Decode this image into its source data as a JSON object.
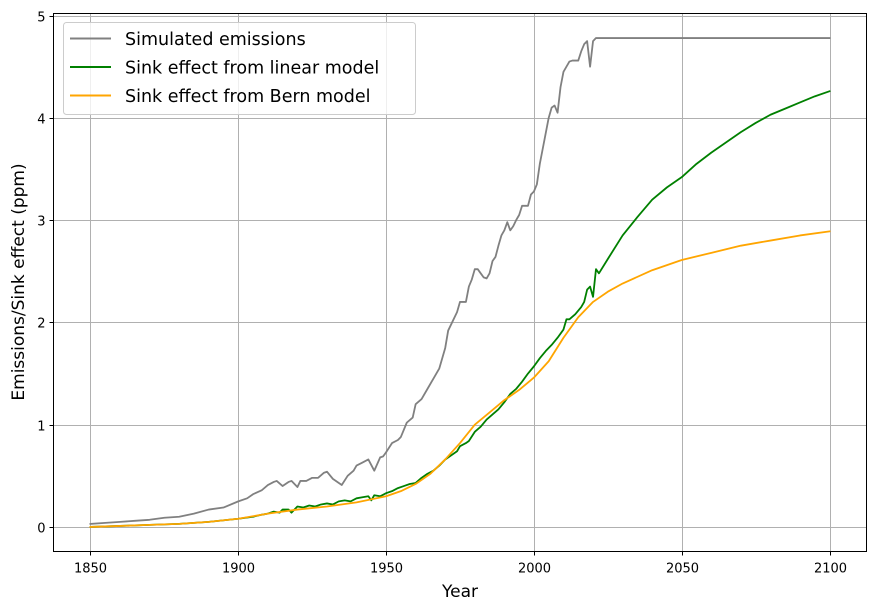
{
  "chart_data": {
    "type": "line",
    "title": "",
    "xlabel": "Year",
    "ylabel": "Emissions/Sink effect (ppm)",
    "xlim": [
      1837.5,
      2112.5
    ],
    "ylim": [
      -0.24,
      5.02
    ],
    "xticks": [
      1850,
      1900,
      1950,
      2000,
      2050,
      2100
    ],
    "yticks": [
      0,
      1,
      2,
      3,
      4,
      5
    ],
    "xtick_labels": [
      "1850",
      "1900",
      "1950",
      "2000",
      "2050",
      "2100"
    ],
    "ytick_labels": [
      "0",
      "1",
      "2",
      "3",
      "4",
      "5"
    ],
    "grid": true,
    "legend_position": "top-left",
    "series": [
      {
        "name": "Simulated emissions",
        "color": "#808080",
        "x": [
          1850,
          1855,
          1860,
          1865,
          1870,
          1875,
          1880,
          1885,
          1890,
          1895,
          1900,
          1903,
          1905,
          1908,
          1910,
          1912,
          1913,
          1915,
          1917,
          1918,
          1920,
          1921,
          1923,
          1925,
          1927,
          1929,
          1930,
          1932,
          1935,
          1937,
          1939,
          1940,
          1942,
          1944,
          1946,
          1948,
          1949,
          1950,
          1952,
          1954,
          1955,
          1957,
          1959,
          1960,
          1962,
          1964,
          1966,
          1968,
          1970,
          1971,
          1972,
          1974,
          1975,
          1976,
          1977,
          1978,
          1979,
          1980,
          1981,
          1982,
          1983,
          1984,
          1985,
          1986,
          1987,
          1988,
          1989,
          1990,
          1991,
          1992,
          1993,
          1994,
          1995,
          1996,
          1997,
          1998,
          1999,
          2000,
          2001,
          2002,
          2003,
          2004,
          2005,
          2006,
          2007,
          2008,
          2009,
          2010,
          2011,
          2012,
          2013,
          2014,
          2015,
          2016,
          2017,
          2018,
          2019,
          2020,
          2021,
          2022,
          2030,
          2050,
          2075,
          2100
        ],
        "y": [
          0.03,
          0.04,
          0.05,
          0.06,
          0.07,
          0.09,
          0.1,
          0.13,
          0.17,
          0.19,
          0.25,
          0.28,
          0.32,
          0.36,
          0.41,
          0.44,
          0.45,
          0.4,
          0.44,
          0.45,
          0.39,
          0.45,
          0.45,
          0.48,
          0.48,
          0.53,
          0.54,
          0.47,
          0.41,
          0.5,
          0.55,
          0.6,
          0.63,
          0.66,
          0.55,
          0.68,
          0.69,
          0.73,
          0.82,
          0.85,
          0.88,
          1.02,
          1.07,
          1.2,
          1.25,
          1.35,
          1.45,
          1.55,
          1.75,
          1.92,
          1.98,
          2.1,
          2.2,
          2.2,
          2.2,
          2.35,
          2.42,
          2.52,
          2.52,
          2.48,
          2.44,
          2.43,
          2.48,
          2.6,
          2.64,
          2.75,
          2.85,
          2.9,
          2.98,
          2.9,
          2.94,
          3.0,
          3.05,
          3.14,
          3.14,
          3.14,
          3.25,
          3.28,
          3.35,
          3.55,
          3.7,
          3.85,
          4.0,
          4.1,
          4.12,
          4.05,
          4.3,
          4.45,
          4.5,
          4.55,
          4.56,
          4.56,
          4.56,
          4.65,
          4.72,
          4.75,
          4.5,
          4.75,
          4.78,
          4.78,
          4.78,
          4.78,
          4.78,
          4.78
        ]
      },
      {
        "name": "Sink effect from linear model",
        "color": "#008000",
        "x": [
          1850,
          1860,
          1870,
          1880,
          1890,
          1900,
          1905,
          1908,
          1910,
          1912,
          1914,
          1915,
          1917,
          1918,
          1920,
          1922,
          1924,
          1926,
          1928,
          1930,
          1932,
          1934,
          1936,
          1938,
          1940,
          1942,
          1944,
          1945,
          1946,
          1948,
          1950,
          1952,
          1954,
          1956,
          1958,
          1960,
          1962,
          1964,
          1966,
          1968,
          1970,
          1972,
          1974,
          1975,
          1977,
          1978,
          1980,
          1982,
          1984,
          1986,
          1988,
          1990,
          1992,
          1994,
          1996,
          1998,
          2000,
          2002,
          2004,
          2006,
          2008,
          2010,
          2011,
          2012,
          2014,
          2016,
          2017,
          2018,
          2019,
          2020,
          2021,
          2022,
          2025,
          2030,
          2035,
          2040,
          2045,
          2050,
          2055,
          2060,
          2065,
          2070,
          2075,
          2080,
          2085,
          2090,
          2095,
          2100
        ],
        "y": [
          0.0,
          0.01,
          0.02,
          0.03,
          0.05,
          0.08,
          0.1,
          0.12,
          0.13,
          0.15,
          0.14,
          0.17,
          0.17,
          0.14,
          0.2,
          0.19,
          0.21,
          0.2,
          0.22,
          0.23,
          0.22,
          0.25,
          0.26,
          0.25,
          0.28,
          0.29,
          0.3,
          0.26,
          0.31,
          0.3,
          0.33,
          0.35,
          0.38,
          0.4,
          0.42,
          0.43,
          0.48,
          0.52,
          0.55,
          0.6,
          0.66,
          0.7,
          0.74,
          0.79,
          0.82,
          0.84,
          0.93,
          0.98,
          1.05,
          1.1,
          1.15,
          1.22,
          1.3,
          1.35,
          1.42,
          1.5,
          1.57,
          1.65,
          1.72,
          1.78,
          1.85,
          1.93,
          2.03,
          2.03,
          2.08,
          2.15,
          2.2,
          2.32,
          2.35,
          2.25,
          2.52,
          2.48,
          2.62,
          2.85,
          3.03,
          3.2,
          3.32,
          3.42,
          3.55,
          3.66,
          3.76,
          3.86,
          3.95,
          4.03,
          4.09,
          4.15,
          4.21,
          4.26
        ]
      },
      {
        "name": "Sink effect from Bern model",
        "color": "#ffa500",
        "x": [
          1850,
          1860,
          1870,
          1880,
          1890,
          1900,
          1910,
          1920,
          1930,
          1940,
          1950,
          1955,
          1960,
          1965,
          1970,
          1975,
          1980,
          1985,
          1990,
          1995,
          2000,
          2005,
          2010,
          2015,
          2020,
          2025,
          2030,
          2040,
          2050,
          2060,
          2070,
          2080,
          2090,
          2100
        ],
        "y": [
          0.0,
          0.01,
          0.02,
          0.03,
          0.05,
          0.08,
          0.13,
          0.17,
          0.2,
          0.24,
          0.3,
          0.35,
          0.42,
          0.52,
          0.66,
          0.82,
          1.0,
          1.12,
          1.24,
          1.34,
          1.46,
          1.62,
          1.85,
          2.05,
          2.2,
          2.3,
          2.38,
          2.51,
          2.61,
          2.68,
          2.75,
          2.8,
          2.85,
          2.89
        ]
      }
    ]
  }
}
